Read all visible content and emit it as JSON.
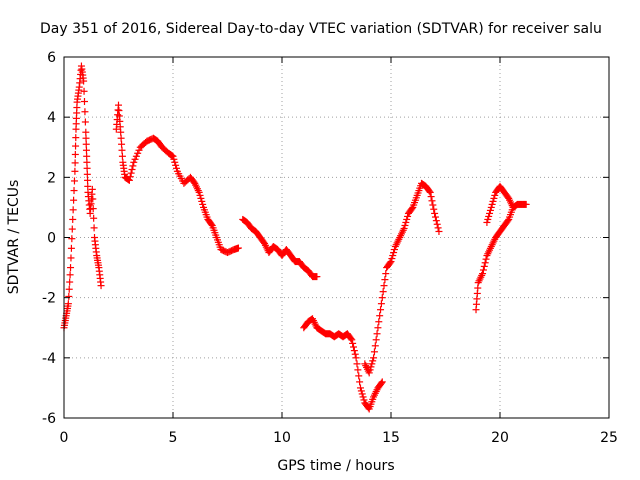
{
  "chart_data": {
    "type": "scatter",
    "title": "Day 351 of 2016, Sidereal Day-to-day VTEC variation (SDTVAR) for receiver salu",
    "xlabel": "GPS time / hours",
    "ylabel": "SDTVAR / TECUs",
    "xlim": [
      0,
      25
    ],
    "ylim": [
      -6,
      6
    ],
    "x_ticks": [
      "0",
      "5",
      "10",
      "15",
      "20",
      "25"
    ],
    "y_ticks": [
      "-6",
      "-4",
      "-2",
      "0",
      "2",
      "4",
      "6"
    ],
    "x_tick_values": [
      0,
      5,
      10,
      15,
      20,
      25
    ],
    "y_tick_values": [
      -6,
      -4,
      -2,
      0,
      2,
      4,
      6
    ],
    "grid": true,
    "marker": "plus",
    "color": "#ff0000",
    "series": [
      {
        "name": "SDTVAR",
        "segments": [
          [
            [
              0.0,
              -3.0
            ],
            [
              0.1,
              -2.6
            ],
            [
              0.2,
              -2.2
            ],
            [
              0.3,
              -1.0
            ],
            [
              0.4,
              0.6
            ],
            [
              0.5,
              2.2
            ],
            [
              0.55,
              3.6
            ],
            [
              0.6,
              4.5
            ],
            [
              0.7,
              5.0
            ],
            [
              0.8,
              5.7
            ],
            [
              0.9,
              5.2
            ],
            [
              1.0,
              3.5
            ],
            [
              1.05,
              2.5
            ],
            [
              1.1,
              1.5
            ],
            [
              1.2,
              0.8
            ],
            [
              1.3,
              1.6
            ],
            [
              1.4,
              0.0
            ],
            [
              1.5,
              -0.6
            ],
            [
              1.6,
              -1.0
            ],
            [
              1.7,
              -1.6
            ]
          ],
          [
            [
              2.4,
              3.6
            ],
            [
              2.5,
              4.4
            ],
            [
              2.6,
              3.5
            ],
            [
              2.7,
              2.5
            ],
            [
              2.8,
              2.0
            ],
            [
              3.0,
              1.9
            ],
            [
              3.2,
              2.5
            ],
            [
              3.5,
              3.0
            ],
            [
              3.8,
              3.2
            ],
            [
              4.1,
              3.3
            ],
            [
              4.3,
              3.2
            ],
            [
              4.5,
              3.0
            ],
            [
              4.8,
              2.8
            ],
            [
              5.0,
              2.7
            ],
            [
              5.2,
              2.2
            ],
            [
              5.5,
              1.8
            ],
            [
              5.8,
              2.0
            ],
            [
              6.0,
              1.8
            ],
            [
              6.2,
              1.5
            ],
            [
              6.4,
              1.0
            ],
            [
              6.6,
              0.6
            ],
            [
              6.8,
              0.4
            ],
            [
              7.0,
              0.0
            ],
            [
              7.2,
              -0.4
            ],
            [
              7.5,
              -0.5
            ],
            [
              7.8,
              -0.4
            ],
            [
              8.0,
              -0.35
            ]
          ],
          [
            [
              8.2,
              0.6
            ],
            [
              8.4,
              0.5
            ],
            [
              8.6,
              0.3
            ],
            [
              8.8,
              0.2
            ],
            [
              9.0,
              0.0
            ],
            [
              9.2,
              -0.2
            ],
            [
              9.4,
              -0.5
            ],
            [
              9.6,
              -0.3
            ],
            [
              9.8,
              -0.4
            ],
            [
              10.0,
              -0.6
            ],
            [
              10.2,
              -0.4
            ],
            [
              10.4,
              -0.6
            ],
            [
              10.6,
              -0.8
            ],
            [
              10.8,
              -0.8
            ],
            [
              11.0,
              -1.0
            ],
            [
              11.2,
              -1.1
            ],
            [
              11.4,
              -1.3
            ],
            [
              11.6,
              -1.3
            ]
          ],
          [
            [
              11.0,
              -3.0
            ],
            [
              11.2,
              -2.8
            ],
            [
              11.4,
              -2.7
            ],
            [
              11.6,
              -3.0
            ],
            [
              11.8,
              -3.1
            ],
            [
              12.0,
              -3.2
            ],
            [
              12.2,
              -3.2
            ],
            [
              12.4,
              -3.3
            ],
            [
              12.6,
              -3.2
            ],
            [
              12.8,
              -3.3
            ],
            [
              13.0,
              -3.2
            ],
            [
              13.2,
              -3.4
            ],
            [
              13.4,
              -4.0
            ],
            [
              13.6,
              -5.0
            ],
            [
              13.8,
              -5.5
            ],
            [
              14.0,
              -5.7
            ],
            [
              14.2,
              -5.3
            ],
            [
              14.4,
              -5.0
            ],
            [
              14.6,
              -4.8
            ]
          ],
          [
            [
              13.8,
              -4.2
            ],
            [
              14.0,
              -4.5
            ],
            [
              14.2,
              -4.0
            ],
            [
              14.4,
              -3.0
            ],
            [
              14.6,
              -2.0
            ],
            [
              14.8,
              -1.0
            ],
            [
              15.0,
              -0.8
            ],
            [
              15.2,
              -0.3
            ],
            [
              15.4,
              0.0
            ],
            [
              15.6,
              0.3
            ],
            [
              15.8,
              0.8
            ],
            [
              16.0,
              1.0
            ],
            [
              16.2,
              1.4
            ],
            [
              16.4,
              1.8
            ],
            [
              16.6,
              1.7
            ],
            [
              16.8,
              1.5
            ],
            [
              17.0,
              0.8
            ],
            [
              17.2,
              0.2
            ]
          ],
          [
            [
              18.9,
              -2.4
            ],
            [
              19.0,
              -1.5
            ],
            [
              19.2,
              -1.2
            ],
            [
              19.4,
              -0.6
            ],
            [
              19.6,
              -0.3
            ],
            [
              19.8,
              0.0
            ],
            [
              20.0,
              0.2
            ],
            [
              20.2,
              0.4
            ],
            [
              20.4,
              0.6
            ],
            [
              20.6,
              1.0
            ],
            [
              20.8,
              1.1
            ],
            [
              21.0,
              1.1
            ],
            [
              21.2,
              1.1
            ]
          ],
          [
            [
              19.4,
              0.5
            ],
            [
              19.6,
              1.0
            ],
            [
              19.8,
              1.5
            ],
            [
              20.0,
              1.7
            ],
            [
              20.2,
              1.5
            ],
            [
              20.4,
              1.3
            ],
            [
              20.6,
              1.0
            ]
          ]
        ]
      }
    ]
  }
}
